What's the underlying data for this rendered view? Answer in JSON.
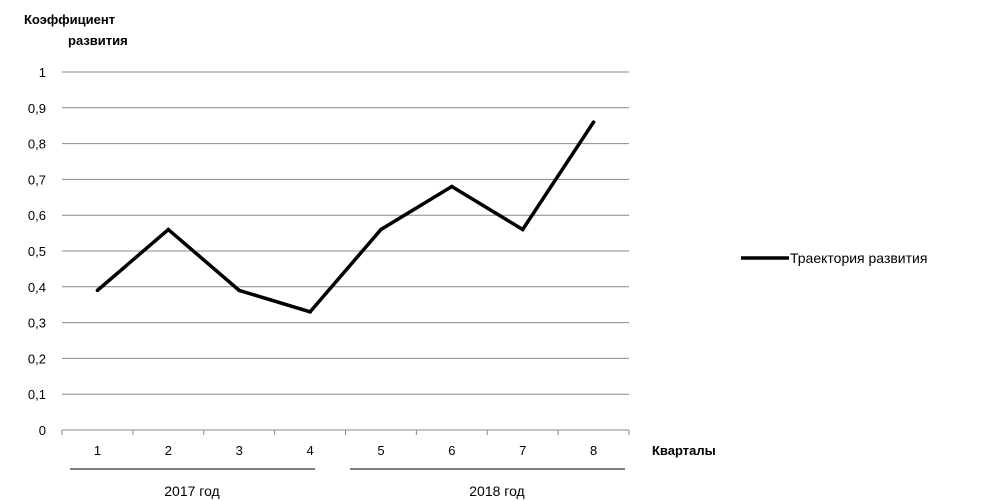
{
  "chart_data": {
    "type": "line",
    "ylabel_lines": [
      "Коэффициент",
      "развития"
    ],
    "xlabel": "Кварталы",
    "categories": [
      "1",
      "2",
      "3",
      "4",
      "5",
      "6",
      "7",
      "8"
    ],
    "yticks": [
      "0",
      "0,1",
      "0,2",
      "0,3",
      "0,4",
      "0,5",
      "0,6",
      "0,7",
      "0,8",
      "0,9",
      "1"
    ],
    "ylim": [
      0,
      1
    ],
    "grid": true,
    "legend_position": "right",
    "series": [
      {
        "name": "Траектория развития",
        "color": "#000000",
        "values": [
          0.39,
          0.56,
          0.39,
          0.33,
          0.56,
          0.68,
          0.56,
          0.86
        ]
      }
    ],
    "groups": [
      {
        "label": "2017 год",
        "from": 1,
        "to": 4
      },
      {
        "label": "2018 год",
        "from": 5,
        "to": 8
      }
    ]
  }
}
